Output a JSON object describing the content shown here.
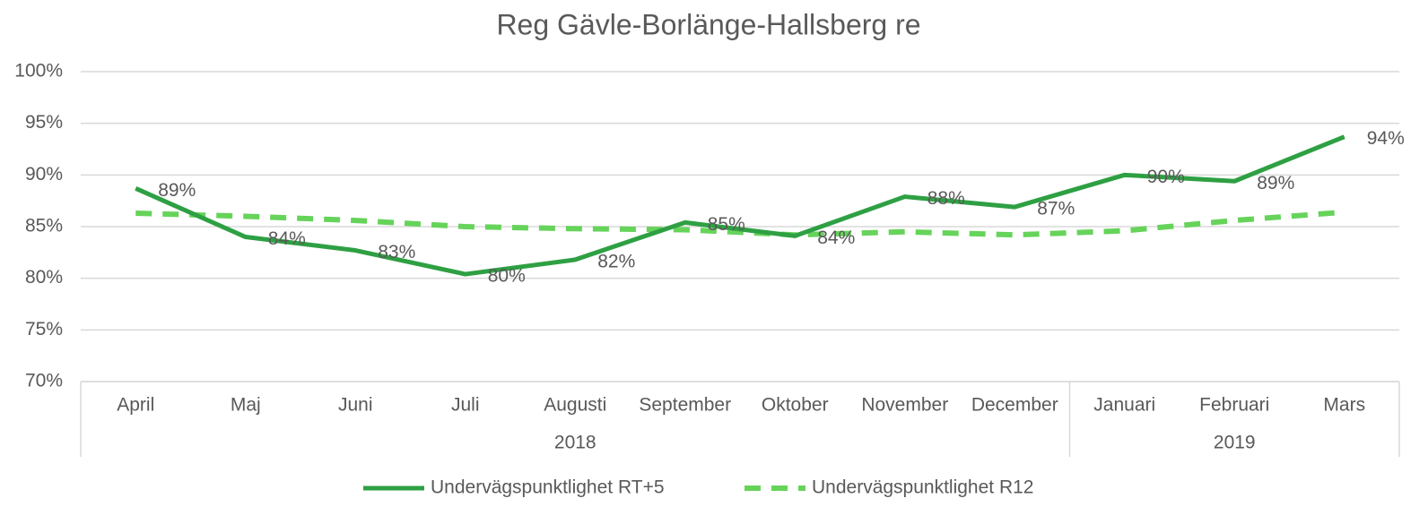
{
  "chart_data": {
    "type": "line",
    "title": "Reg Gävle-Borlänge-Hallsberg re",
    "categories": [
      "April",
      "Maj",
      "Juni",
      "Juli",
      "Augusti",
      "September",
      "Oktober",
      "November",
      "December",
      "Januari",
      "Februari",
      "Mars"
    ],
    "x_groups": [
      {
        "label": "2018",
        "span": 9
      },
      {
        "label": "2019",
        "span": 3
      }
    ],
    "series": [
      {
        "name": "Undervägspunktlighet RT+5",
        "color": "#2ea043",
        "dash": false,
        "values": [
          88.7,
          84.0,
          82.7,
          80.4,
          81.8,
          85.4,
          84.1,
          87.9,
          86.9,
          90.0,
          89.4,
          93.7
        ],
        "value_labels": [
          "89%",
          "84%",
          "83%",
          "80%",
          "82%",
          "85%",
          "84%",
          "88%",
          "87%",
          "90%",
          "89%",
          "94%"
        ]
      },
      {
        "name": "Undervägspunktlighet R12",
        "color": "#66d35a",
        "dash": true,
        "values": [
          86.3,
          86.0,
          85.6,
          85.0,
          84.8,
          84.7,
          84.2,
          84.5,
          84.2,
          84.6,
          85.6,
          86.4
        ]
      }
    ],
    "ylim": [
      70,
      100
    ],
    "yticks": [
      {
        "value": 70,
        "label": "70%"
      },
      {
        "value": 75,
        "label": "75%"
      },
      {
        "value": 80,
        "label": "80%"
      },
      {
        "value": 85,
        "label": "85%"
      },
      {
        "value": 90,
        "label": "90%"
      },
      {
        "value": 95,
        "label": "95%"
      },
      {
        "value": 100,
        "label": "100%"
      }
    ],
    "grid": true,
    "legend": "bottom"
  }
}
